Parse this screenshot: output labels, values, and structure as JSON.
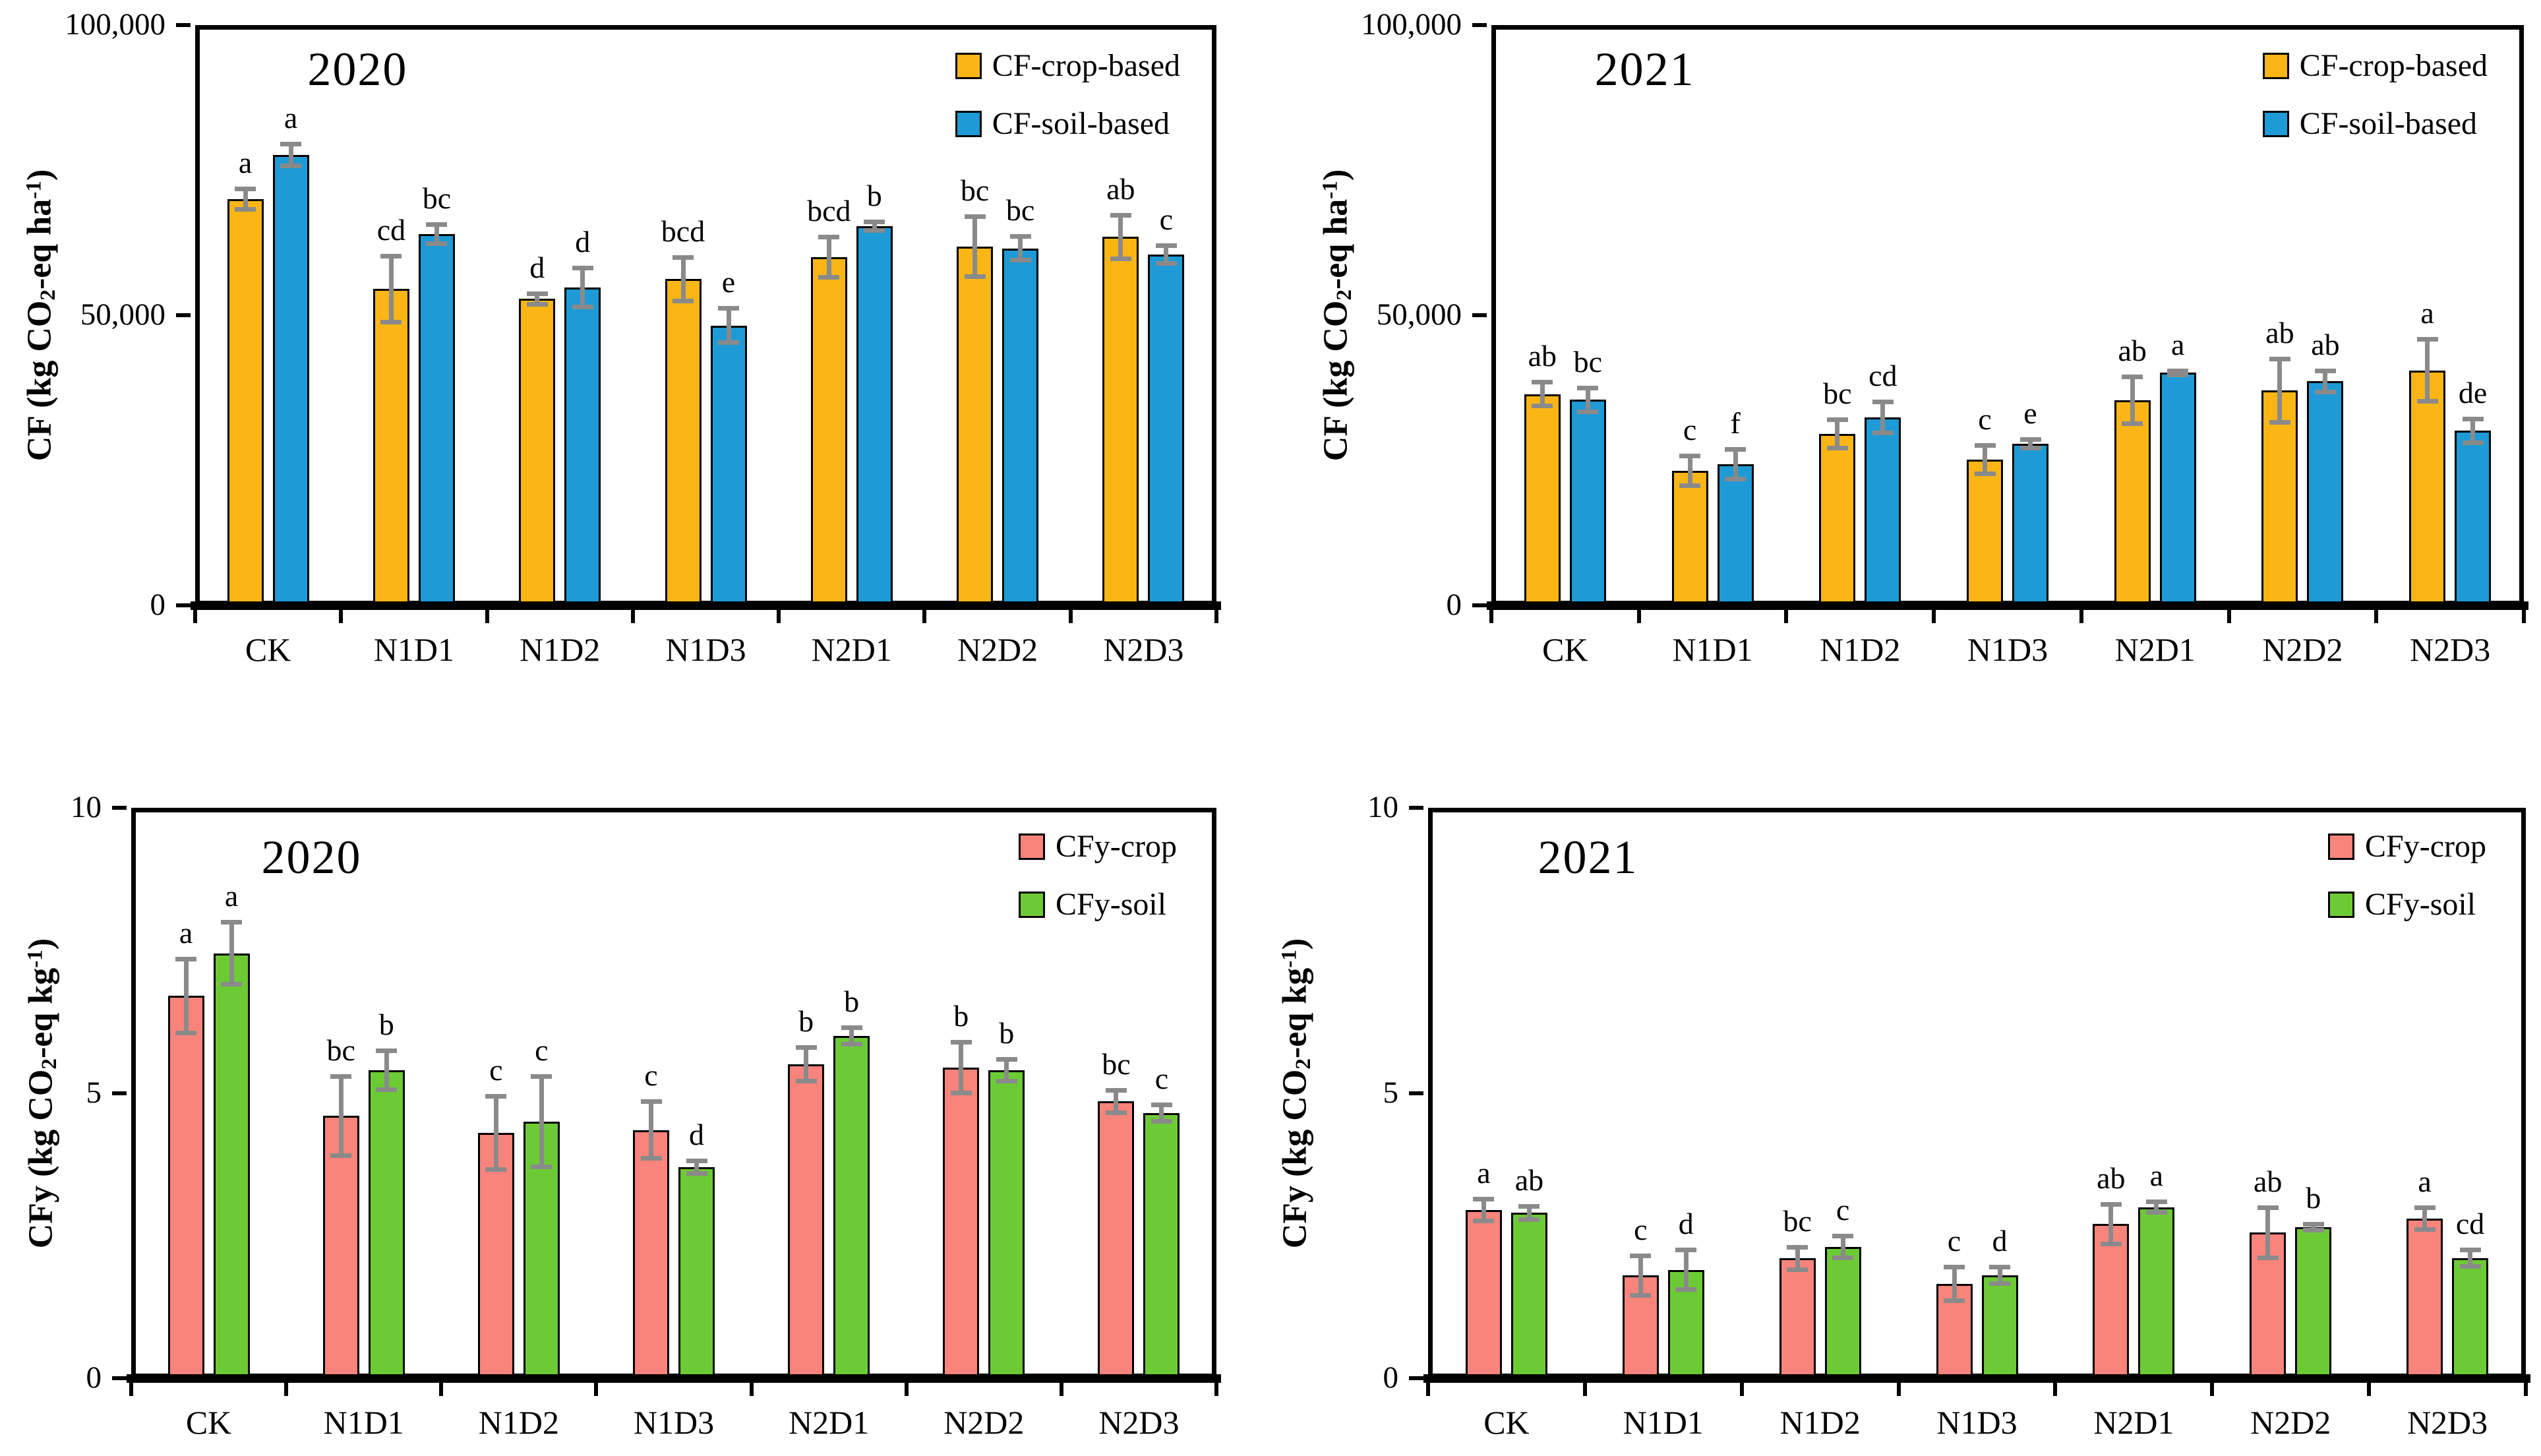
{
  "figure": {
    "background": "#ffffff",
    "axis_color": "#000000",
    "error_bar_color": "#8a8a8a"
  },
  "chart_data": [
    {
      "id": "cf-2020",
      "type": "bar",
      "year_label": "2020",
      "ylabel_segments": [
        {
          "text": "CF (kg CO"
        },
        {
          "text": "2",
          "style": "sub"
        },
        {
          "text": "-eq ha"
        },
        {
          "text": "-1",
          "style": "sup"
        },
        {
          "text": ")"
        }
      ],
      "ylim": [
        0,
        100000
      ],
      "yticks": [
        {
          "value": 0,
          "label": "0"
        },
        {
          "value": 50000,
          "label": "50,000"
        },
        {
          "value": 100000,
          "label": "100,000"
        }
      ],
      "categories": [
        "CK",
        "N1D1",
        "N1D2",
        "N1D3",
        "N2D1",
        "N2D2",
        "N2D3"
      ],
      "legend_position": "top-right",
      "grid": false,
      "series": [
        {
          "name": "CF-crop-based",
          "color": "#FBB615",
          "values": [
            70000,
            54500,
            52800,
            56200,
            60000,
            61800,
            63500
          ],
          "errors": [
            1800,
            5700,
            1000,
            3800,
            3500,
            5200,
            3800
          ],
          "sig_letters": [
            "a",
            "cd",
            "d",
            "bcd",
            "bcd",
            "bc",
            "ab"
          ]
        },
        {
          "name": "CF-soil-based",
          "color": "#1E9AD6",
          "values": [
            77600,
            64000,
            54800,
            48200,
            65300,
            61500,
            60500
          ],
          "errors": [
            1900,
            1700,
            3400,
            3000,
            800,
            2100,
            1600
          ],
          "sig_letters": [
            "a",
            "bc",
            "d",
            "e",
            "b",
            "bc",
            "c"
          ]
        }
      ]
    },
    {
      "id": "cf-2021",
      "type": "bar",
      "year_label": "2021",
      "ylabel_segments": [
        {
          "text": "CF (kg CO"
        },
        {
          "text": "2",
          "style": "sub"
        },
        {
          "text": "-eq ha"
        },
        {
          "text": "-1",
          "style": "sup"
        },
        {
          "text": ")"
        }
      ],
      "ylim": [
        0,
        100000
      ],
      "yticks": [
        {
          "value": 0,
          "label": "0"
        },
        {
          "value": 50000,
          "label": "50,000"
        },
        {
          "value": 100000,
          "label": "100,000"
        }
      ],
      "categories": [
        "CK",
        "N1D1",
        "N1D2",
        "N1D3",
        "N2D1",
        "N2D2",
        "N2D3"
      ],
      "legend_position": "top-right",
      "grid": false,
      "series": [
        {
          "name": "CF-crop-based",
          "color": "#FBB615",
          "values": [
            36400,
            23200,
            29500,
            25100,
            35300,
            37000,
            40500
          ],
          "errors": [
            2100,
            2600,
            2500,
            2500,
            4100,
            5500,
            5400
          ],
          "sig_letters": [
            "ab",
            "c",
            "bc",
            "c",
            "ab",
            "ab",
            "a"
          ]
        },
        {
          "name": "CF-soil-based",
          "color": "#1E9AD6",
          "values": [
            35400,
            24300,
            32400,
            27800,
            40100,
            38600,
            30100
          ],
          "errors": [
            2100,
            2600,
            2700,
            800,
            400,
            1900,
            2100
          ],
          "sig_letters": [
            "bc",
            "f",
            "cd",
            "e",
            "a",
            "ab",
            "de"
          ]
        }
      ]
    },
    {
      "id": "cfy-2020",
      "type": "bar",
      "year_label": "2020",
      "ylabel_segments": [
        {
          "text": "CFy (kg CO"
        },
        {
          "text": "2",
          "style": "sub"
        },
        {
          "text": "-eq kg"
        },
        {
          "text": "-1",
          "style": "sup"
        },
        {
          "text": ")"
        }
      ],
      "ylim": [
        0,
        10
      ],
      "yticks": [
        {
          "value": 0,
          "label": "0"
        },
        {
          "value": 5,
          "label": "5"
        },
        {
          "value": 10,
          "label": "10"
        }
      ],
      "categories": [
        "CK",
        "N1D1",
        "N1D2",
        "N1D3",
        "N2D1",
        "N2D2",
        "N2D3"
      ],
      "legend_position": "top-right",
      "grid": false,
      "series": [
        {
          "name": "CFy-crop",
          "color": "#F9847B",
          "values": [
            6.7,
            4.6,
            4.3,
            4.35,
            5.5,
            5.45,
            4.85
          ],
          "errors": [
            0.65,
            0.7,
            0.65,
            0.5,
            0.3,
            0.45,
            0.2
          ],
          "sig_letters": [
            "a",
            "bc",
            "c",
            "c",
            "b",
            "b",
            "bc"
          ]
        },
        {
          "name": "CFy-soil",
          "color": "#6CCB35",
          "values": [
            7.45,
            5.4,
            4.5,
            3.7,
            6.0,
            5.4,
            4.65
          ],
          "errors": [
            0.55,
            0.35,
            0.8,
            0.12,
            0.15,
            0.2,
            0.15
          ],
          "sig_letters": [
            "a",
            "b",
            "c",
            "d",
            "b",
            "b",
            "c"
          ]
        }
      ]
    },
    {
      "id": "cfy-2021",
      "type": "bar",
      "year_label": "2021",
      "ylabel_segments": [
        {
          "text": "CFy (kg CO"
        },
        {
          "text": "2",
          "style": "sub"
        },
        {
          "text": "-eq kg"
        },
        {
          "text": "-1",
          "style": "sup"
        },
        {
          "text": ")"
        }
      ],
      "ylim": [
        0,
        10
      ],
      "yticks": [
        {
          "value": 0,
          "label": "0"
        },
        {
          "value": 5,
          "label": "5"
        },
        {
          "value": 10,
          "label": "10"
        }
      ],
      "categories": [
        "CK",
        "N1D1",
        "N1D2",
        "N1D3",
        "N2D1",
        "N2D2",
        "N2D3"
      ],
      "legend_position": "top-right",
      "grid": false,
      "series": [
        {
          "name": "CFy-crop",
          "color": "#F9847B",
          "values": [
            2.95,
            1.8,
            2.1,
            1.65,
            2.7,
            2.55,
            2.8
          ],
          "errors": [
            0.2,
            0.35,
            0.2,
            0.3,
            0.35,
            0.45,
            0.2
          ],
          "sig_letters": [
            "a",
            "c",
            "bc",
            "c",
            "ab",
            "ab",
            "a"
          ]
        },
        {
          "name": "CFy-soil",
          "color": "#6CCB35",
          "values": [
            2.9,
            1.9,
            2.3,
            1.8,
            3.0,
            2.65,
            2.1
          ],
          "errors": [
            0.12,
            0.35,
            0.2,
            0.15,
            0.1,
            0.06,
            0.15
          ],
          "sig_letters": [
            "ab",
            "d",
            "c",
            "d",
            "a",
            "b",
            "cd"
          ]
        }
      ]
    }
  ]
}
